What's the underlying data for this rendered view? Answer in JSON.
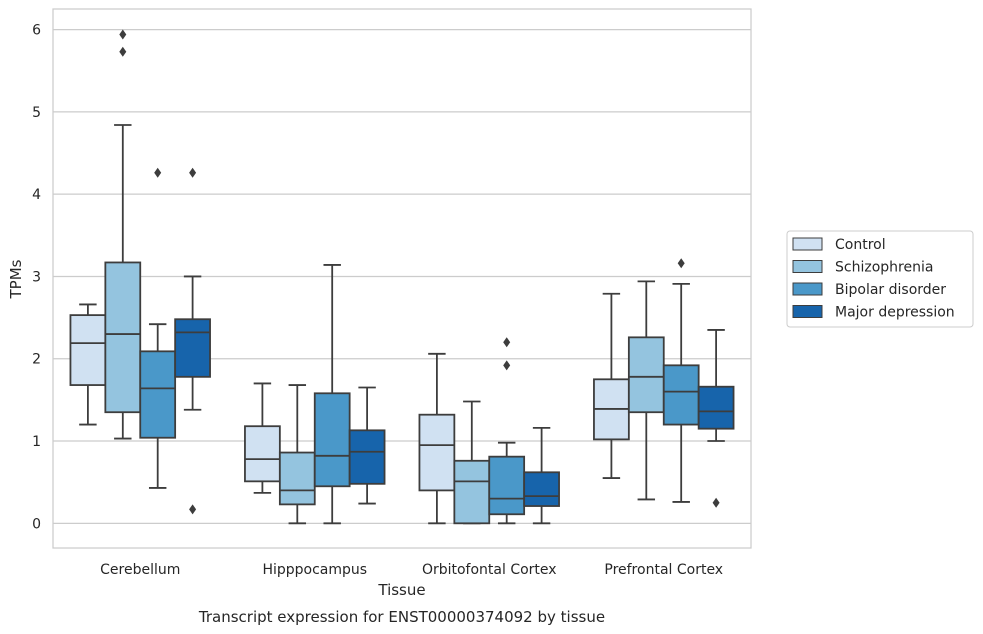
{
  "chart_data": {
    "type": "box",
    "xlabel": "Tissue",
    "ylabel": "TPMs",
    "caption": "Transcript expression for ENST00000374092 by tissue",
    "ylim": [
      -0.3,
      6.25
    ],
    "yticks": [
      0,
      1,
      2,
      3,
      4,
      5,
      6
    ],
    "grid": "horizontal",
    "legend_position": "right",
    "categories": [
      "Cerebellum",
      "Hipppocampus",
      "Orbitofontal Cortex",
      "Prefrontal Cortex"
    ],
    "series": [
      {
        "name": "Control",
        "color": "#d0e1f2",
        "boxes": [
          {
            "whislo": 1.2,
            "q1": 1.68,
            "med": 2.19,
            "q3": 2.53,
            "whishi": 2.66,
            "fliers": []
          },
          {
            "whislo": 0.37,
            "q1": 0.51,
            "med": 0.78,
            "q3": 1.18,
            "whishi": 1.7,
            "fliers": []
          },
          {
            "whislo": 0.0,
            "q1": 0.4,
            "med": 0.95,
            "q3": 1.32,
            "whishi": 2.06,
            "fliers": []
          },
          {
            "whislo": 0.55,
            "q1": 1.02,
            "med": 1.39,
            "q3": 1.75,
            "whishi": 2.79,
            "fliers": []
          }
        ]
      },
      {
        "name": "Schizophrenia",
        "color": "#94c4df",
        "boxes": [
          {
            "whislo": 1.03,
            "q1": 1.35,
            "med": 2.3,
            "q3": 3.17,
            "whishi": 4.84,
            "fliers": [
              5.73,
              5.94
            ]
          },
          {
            "whislo": 0.0,
            "q1": 0.23,
            "med": 0.4,
            "q3": 0.86,
            "whishi": 1.68,
            "fliers": []
          },
          {
            "whislo": 0.0,
            "q1": 0.0,
            "med": 0.51,
            "q3": 0.76,
            "whishi": 1.48,
            "fliers": []
          },
          {
            "whislo": 0.29,
            "q1": 1.35,
            "med": 1.78,
            "q3": 2.26,
            "whishi": 2.94,
            "fliers": []
          }
        ]
      },
      {
        "name": "Bipolar disorder",
        "color": "#4a98c9",
        "boxes": [
          {
            "whislo": 0.43,
            "q1": 1.04,
            "med": 1.64,
            "q3": 2.09,
            "whishi": 2.42,
            "fliers": [
              4.26
            ]
          },
          {
            "whislo": 0.0,
            "q1": 0.45,
            "med": 0.82,
            "q3": 1.58,
            "whishi": 3.14,
            "fliers": []
          },
          {
            "whislo": 0.0,
            "q1": 0.11,
            "med": 0.3,
            "q3": 0.81,
            "whishi": 0.98,
            "fliers": [
              1.92,
              2.2
            ]
          },
          {
            "whislo": 0.26,
            "q1": 1.2,
            "med": 1.6,
            "q3": 1.92,
            "whishi": 2.91,
            "fliers": [
              3.16
            ]
          }
        ]
      },
      {
        "name": "Major depression",
        "color": "#1764ab",
        "boxes": [
          {
            "whislo": 1.38,
            "q1": 1.78,
            "med": 2.32,
            "q3": 2.48,
            "whishi": 3.0,
            "fliers": [
              0.17,
              4.26
            ]
          },
          {
            "whislo": 0.24,
            "q1": 0.48,
            "med": 0.87,
            "q3": 1.13,
            "whishi": 1.65,
            "fliers": []
          },
          {
            "whislo": 0.0,
            "q1": 0.21,
            "med": 0.33,
            "q3": 0.62,
            "whishi": 1.16,
            "fliers": []
          },
          {
            "whislo": 1.0,
            "q1": 1.15,
            "med": 1.36,
            "q3": 1.66,
            "whishi": 2.35,
            "fliers": [
              0.25
            ]
          }
        ]
      }
    ]
  }
}
